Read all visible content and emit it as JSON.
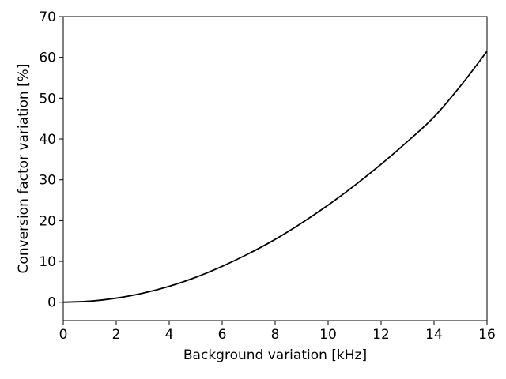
{
  "chart_data": {
    "type": "line",
    "title": "",
    "xlabel": "Background variation [kHz]",
    "ylabel": "Conversion factor variation [%]",
    "xlim": [
      0,
      16
    ],
    "ylim": [
      -4.5,
      70
    ],
    "xticks": [
      0,
      2,
      4,
      6,
      8,
      10,
      12,
      14,
      16
    ],
    "yticks": [
      0,
      10,
      20,
      30,
      40,
      50,
      60,
      70
    ],
    "grid": false,
    "legend": "none",
    "series": [
      {
        "color": "#000000",
        "x": [
          0,
          1,
          2,
          3,
          4,
          5,
          6,
          7,
          8,
          9,
          10,
          11,
          12,
          13,
          14,
          15,
          16
        ],
        "y": [
          0,
          0.25,
          1.0,
          2.2,
          3.9,
          6.1,
          8.8,
          11.9,
          15.4,
          19.4,
          23.8,
          28.6,
          33.8,
          39.4,
          45.4,
          53.0,
          61.5
        ]
      }
    ]
  }
}
